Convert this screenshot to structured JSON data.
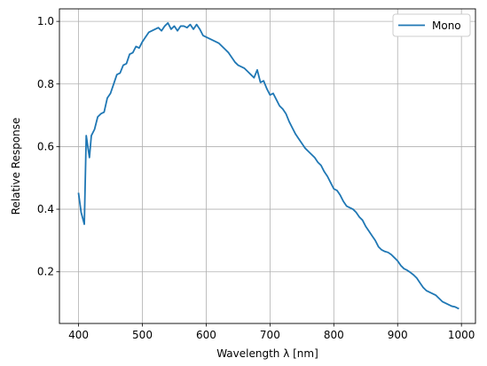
{
  "chart_data": {
    "type": "line",
    "title": "",
    "xlabel": "Wavelength λ [nm]",
    "ylabel": "Relative Response",
    "xlim": [
      370,
      1022
    ],
    "ylim": [
      0.035,
      1.04
    ],
    "xticks": [
      400,
      500,
      600,
      700,
      800,
      900,
      1000
    ],
    "yticks": [
      0.2,
      0.4,
      0.6,
      0.8,
      1.0
    ],
    "xtick_labels": [
      "400",
      "500",
      "600",
      "700",
      "800",
      "900",
      "1000"
    ],
    "ytick_labels": [
      "0.2",
      "0.4",
      "0.6",
      "0.8",
      "1.0"
    ],
    "grid": true,
    "legend_position": "top-right",
    "series_color": "#1f77b4",
    "series": [
      {
        "name": "Mono",
        "x": [
          400,
          404,
          409,
          412,
          417,
          420,
          425,
          430,
          435,
          440,
          445,
          450,
          455,
          460,
          465,
          470,
          475,
          480,
          485,
          490,
          495,
          500,
          505,
          510,
          515,
          520,
          525,
          530,
          535,
          540,
          545,
          550,
          555,
          560,
          565,
          570,
          575,
          580,
          585,
          590,
          595,
          600,
          605,
          610,
          615,
          620,
          625,
          630,
          635,
          640,
          645,
          650,
          655,
          660,
          665,
          670,
          675,
          680,
          685,
          690,
          695,
          700,
          705,
          710,
          715,
          720,
          725,
          730,
          735,
          740,
          745,
          750,
          755,
          760,
          765,
          770,
          775,
          780,
          785,
          790,
          795,
          800,
          805,
          810,
          815,
          820,
          825,
          830,
          835,
          840,
          845,
          850,
          855,
          860,
          865,
          870,
          875,
          880,
          885,
          890,
          895,
          900,
          905,
          910,
          915,
          920,
          925,
          930,
          935,
          940,
          945,
          950,
          955,
          960,
          965,
          970,
          975,
          980,
          985,
          990,
          995
        ],
        "y": [
          0.45,
          0.39,
          0.352,
          0.635,
          0.565,
          0.635,
          0.655,
          0.695,
          0.705,
          0.71,
          0.755,
          0.77,
          0.8,
          0.83,
          0.835,
          0.86,
          0.865,
          0.895,
          0.9,
          0.92,
          0.915,
          0.935,
          0.95,
          0.965,
          0.97,
          0.975,
          0.98,
          0.97,
          0.985,
          0.995,
          0.975,
          0.985,
          0.97,
          0.985,
          0.985,
          0.98,
          0.99,
          0.975,
          0.99,
          0.975,
          0.955,
          0.95,
          0.945,
          0.94,
          0.935,
          0.93,
          0.92,
          0.91,
          0.9,
          0.885,
          0.87,
          0.86,
          0.855,
          0.85,
          0.84,
          0.83,
          0.82,
          0.845,
          0.805,
          0.81,
          0.785,
          0.765,
          0.77,
          0.75,
          0.73,
          0.72,
          0.705,
          0.68,
          0.66,
          0.64,
          0.625,
          0.61,
          0.595,
          0.585,
          0.575,
          0.565,
          0.55,
          0.54,
          0.52,
          0.505,
          0.485,
          0.465,
          0.46,
          0.445,
          0.425,
          0.41,
          0.405,
          0.4,
          0.39,
          0.375,
          0.365,
          0.345,
          0.33,
          0.315,
          0.3,
          0.28,
          0.27,
          0.265,
          0.262,
          0.255,
          0.245,
          0.235,
          0.22,
          0.21,
          0.205,
          0.198,
          0.19,
          0.18,
          0.165,
          0.15,
          0.14,
          0.135,
          0.13,
          0.125,
          0.115,
          0.105,
          0.1,
          0.095,
          0.09,
          0.088,
          0.083
        ]
      }
    ]
  }
}
